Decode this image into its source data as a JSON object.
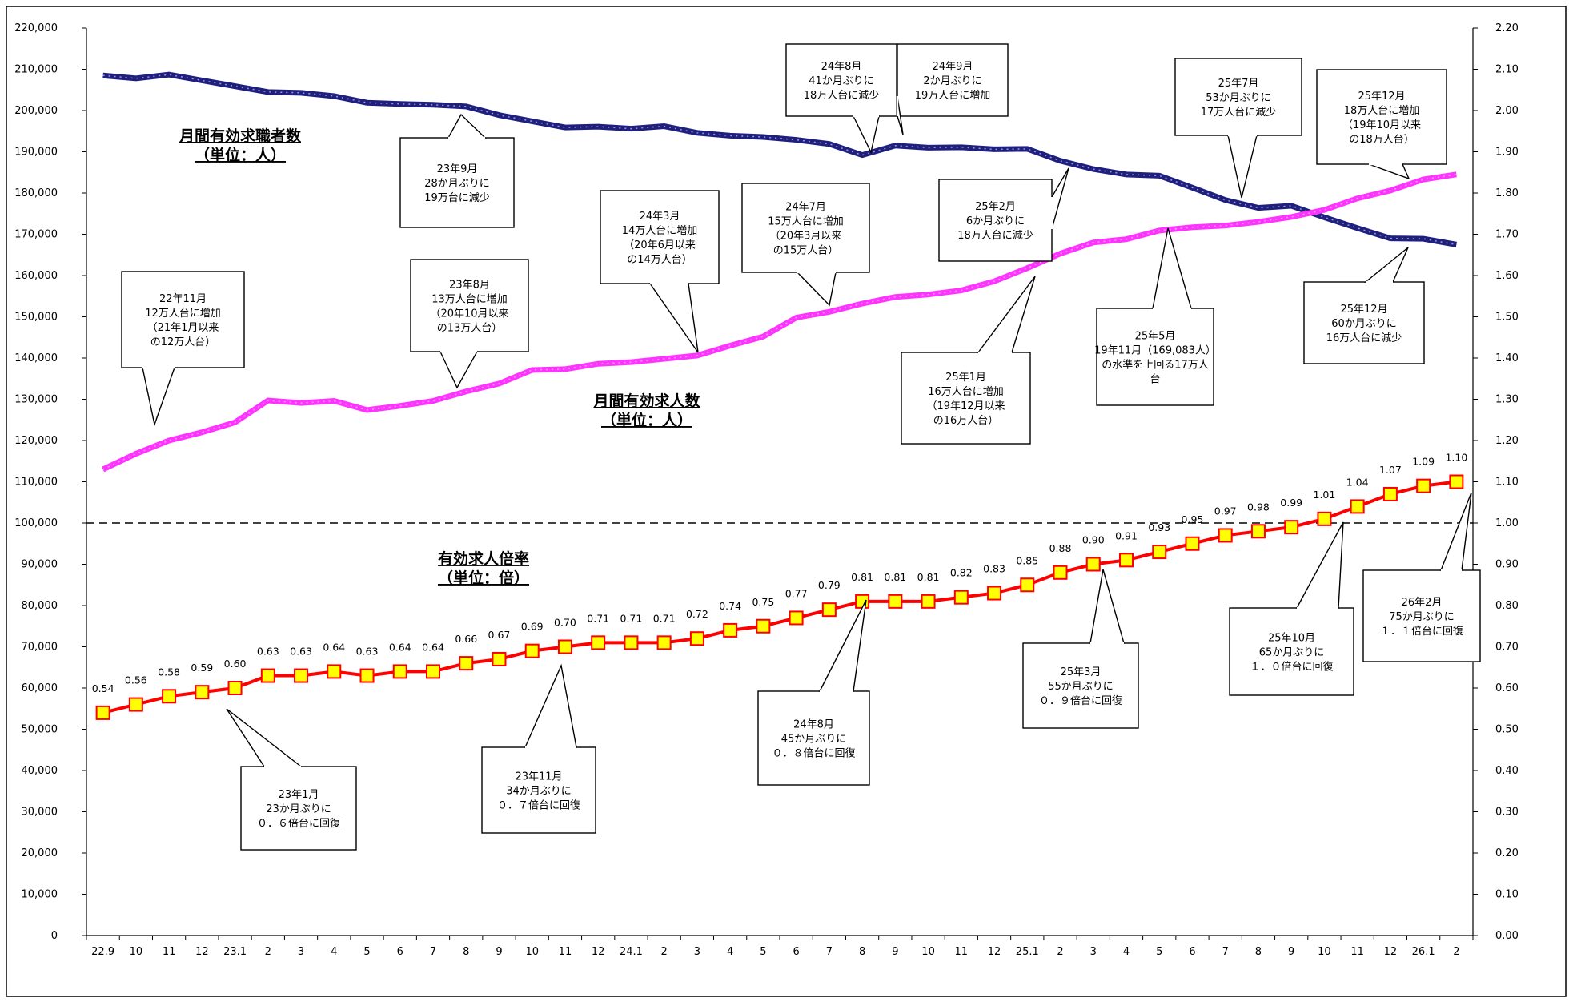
{
  "chart_data": {
    "type": "line",
    "categories": [
      "22.9",
      "10",
      "11",
      "12",
      "23.1",
      "2",
      "3",
      "4",
      "5",
      "6",
      "7",
      "8",
      "9",
      "10",
      "11",
      "12",
      "24.1",
      "2",
      "3",
      "4",
      "5",
      "6",
      "7",
      "8",
      "9",
      "10",
      "11",
      "12",
      "25.1",
      "2",
      "3",
      "4",
      "5",
      "6",
      "7",
      "8",
      "9",
      "10",
      "11",
      "12",
      "26.1",
      "2"
    ],
    "y_left": {
      "min": 0,
      "max": 220000,
      "ticks": [
        "0",
        "10,000",
        "20,000",
        "30,000",
        "40,000",
        "50,000",
        "60,000",
        "70,000",
        "80,000",
        "90,000",
        "100,000",
        "110,000",
        "120,000",
        "130,000",
        "140,000",
        "150,000",
        "160,000",
        "170,000",
        "180,000",
        "190,000",
        "200,000",
        "210,000",
        "220,000"
      ]
    },
    "y_right": {
      "min": 0,
      "max": 2.2,
      "ticks": [
        "0.00",
        "0.10",
        "0.20",
        "0.30",
        "0.40",
        "0.50",
        "0.60",
        "0.70",
        "0.80",
        "0.90",
        "1.00",
        "1.10",
        "1.20",
        "1.30",
        "1.40",
        "1.50",
        "1.60",
        "1.70",
        "1.80",
        "1.90",
        "2.00",
        "2.10",
        "2.20"
      ]
    },
    "reference_line": {
      "value": 1.0,
      "axis": "right",
      "style": "dashed"
    },
    "series": [
      {
        "axis": "left",
        "color": "#1f1f7f",
        "values": [
          208500,
          207800,
          208700,
          207300,
          205900,
          204500,
          204300,
          203500,
          201900,
          201600,
          201400,
          201000,
          198900,
          197400,
          195900,
          196100,
          195600,
          196200,
          194600,
          193900,
          193600,
          192900,
          191900,
          189200,
          191500,
          191000,
          191100,
          190600,
          190700,
          187800,
          185800,
          184500,
          184200,
          181300,
          178300,
          176400,
          176900,
          174100,
          171500,
          169000,
          168900,
          167500
        ]
      },
      {
        "axis": "left",
        "color": "#ff33ff",
        "values": [
          113000,
          116800,
          120000,
          122000,
          124400,
          129700,
          129100,
          129600,
          127400,
          128400,
          129600,
          131900,
          133800,
          137100,
          137300,
          138600,
          139000,
          139800,
          140600,
          143000,
          145200,
          149800,
          151200,
          153200,
          154800,
          155400,
          156400,
          158600,
          161800,
          165300,
          168000,
          168800,
          170900,
          171700,
          172100,
          173000,
          174200,
          175900,
          178700,
          180600,
          183300,
          184500
        ]
      },
      {
        "axis": "right",
        "color": "#ff0000",
        "marker": "#ffff00",
        "values": [
          0.54,
          0.56,
          0.58,
          0.59,
          0.6,
          0.63,
          0.63,
          0.64,
          0.63,
          0.64,
          0.64,
          0.66,
          0.67,
          0.69,
          0.7,
          0.71,
          0.71,
          0.71,
          0.72,
          0.74,
          0.75,
          0.77,
          0.79,
          0.81,
          0.81,
          0.81,
          0.82,
          0.83,
          0.85,
          0.88,
          0.9,
          0.91,
          0.93,
          0.95,
          0.97,
          0.98,
          0.99,
          1.01,
          1.04,
          1.07,
          1.09,
          1.1
        ]
      }
    ],
    "labels": {
      "ratio": [
        "0.54",
        "0.56",
        "0.58",
        "0.59",
        "0.60",
        "0.63",
        "0.63",
        "0.64",
        "0.63",
        "0.64",
        "0.64",
        "0.66",
        "0.67",
        "0.69",
        "0.70",
        "0.71",
        "0.71",
        "0.71",
        "0.72",
        "0.74",
        "0.75",
        "0.77",
        "0.79",
        "0.81",
        "0.81",
        "0.81",
        "0.82",
        "0.83",
        "0.85",
        "0.88",
        "0.90",
        "0.91",
        "0.93",
        "0.95",
        "0.97",
        "0.98",
        "0.99",
        "1.01",
        "1.04",
        "1.07",
        "1.09",
        "1.10"
      ]
    },
    "titles": [
      {
        "lines": [
          "月間有効求職者数",
          "（単位：人）"
        ]
      },
      {
        "lines": [
          "月間有効求人数",
          "（単位：人）"
        ]
      },
      {
        "lines": [
          "有効求人倍率",
          "（単位：倍）"
        ]
      }
    ],
    "annotations": [
      {
        "lines": [
          "22年11月",
          "12万人台に増加",
          "（21年1月以来",
          "の12万人台）"
        ]
      },
      {
        "lines": [
          "23年1月",
          "23か月ぶりに",
          "０．６倍台に回復"
        ]
      },
      {
        "lines": [
          "23年9月",
          "28か月ぶりに",
          "19万台に減少"
        ]
      },
      {
        "lines": [
          "23年8月",
          "13万人台に増加",
          "（20年10月以来",
          "の13万人台）"
        ]
      },
      {
        "lines": [
          "23年11月",
          "34か月ぶりに",
          "０．７倍台に回復"
        ]
      },
      {
        "lines": [
          "24年3月",
          "14万人台に増加",
          "（20年6月以来",
          "の14万人台）"
        ]
      },
      {
        "lines": [
          "24年7月",
          "15万人台に増加",
          "（20年3月以来",
          "の15万人台）"
        ]
      },
      {
        "lines": [
          "24年8月",
          "41か月ぶりに",
          "18万人台に減少"
        ]
      },
      {
        "lines": [
          "24年9月",
          "2か月ぶりに",
          "19万人台に増加"
        ]
      },
      {
        "lines": [
          "24年8月",
          "45か月ぶりに",
          "０．８倍台に回復"
        ]
      },
      {
        "lines": [
          "25年2月",
          "6か月ぶりに",
          "18万人台に減少"
        ]
      },
      {
        "lines": [
          "25年1月",
          "16万人台に増加",
          "（19年12月以来",
          "の16万人台）"
        ]
      },
      {
        "lines": [
          "25年3月",
          "55か月ぶりに",
          "０．９倍台に回復"
        ]
      },
      {
        "lines": [
          "25年5月",
          "19年11月（169,083人）",
          "の水準を上回る17万人",
          "台"
        ]
      },
      {
        "lines": [
          "25年7月",
          "53か月ぶりに",
          "17万人台に減少"
        ]
      },
      {
        "lines": [
          "25年12月",
          "18万人台に増加",
          "（19年10月以来",
          "の18万人台）"
        ]
      },
      {
        "lines": [
          "25年12月",
          "60か月ぶりに",
          "16万人台に減少"
        ]
      },
      {
        "lines": [
          "25年10月",
          "65か月ぶりに",
          "１．０倍台に回復"
        ]
      },
      {
        "lines": [
          "26年2月",
          "75か月ぶりに",
          "１．１倍台に回復"
        ]
      }
    ]
  }
}
